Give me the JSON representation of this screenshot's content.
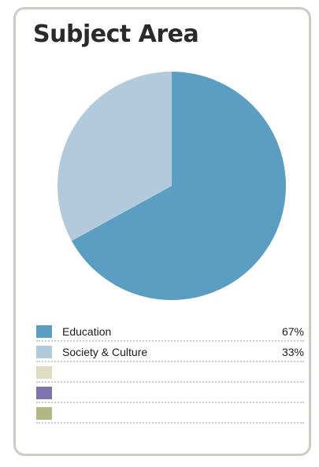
{
  "chart_data": {
    "type": "pie",
    "title": "Subject Area",
    "slices": [
      {
        "label": "Education",
        "value": 67,
        "display": "67%",
        "color": "#5b9ec1"
      },
      {
        "label": "Society & Culture",
        "value": 33,
        "display": "33%",
        "color": "#b3cadd"
      }
    ],
    "legend_placement": "bottom",
    "legend_rows": [
      {
        "label": "Education",
        "value": "67%",
        "color": "#5b9ec1"
      },
      {
        "label": "Society & Culture",
        "value": "33%",
        "color": "#b3cadd"
      },
      {
        "label": "",
        "value": "",
        "color": "#e0dcc3"
      },
      {
        "label": "",
        "value": "",
        "color": "#7f74ad"
      },
      {
        "label": "",
        "value": "",
        "color": "#b2b883"
      }
    ]
  }
}
